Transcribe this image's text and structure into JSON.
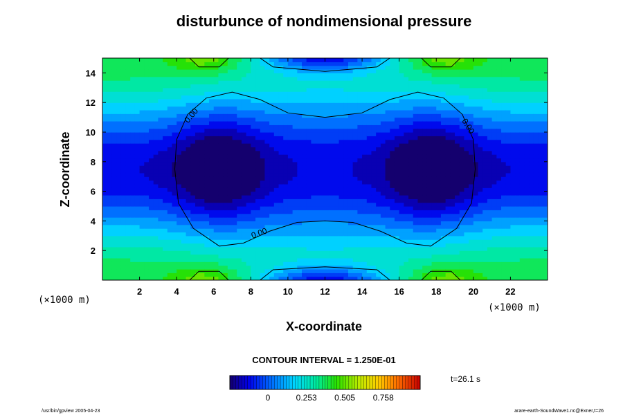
{
  "chart_data": {
    "type": "heatmap",
    "title": "disturbunce of nondimensional pressure",
    "xlabel": "X-coordinate",
    "ylabel": "Z-coordinate",
    "x_unit": "(×1000 m)",
    "y_unit": "(×1000 m)",
    "xlim": [
      0,
      24
    ],
    "ylim": [
      0,
      15
    ],
    "x_ticks": [
      2,
      4,
      6,
      8,
      10,
      12,
      14,
      16,
      18,
      20,
      22
    ],
    "y_ticks": [
      2,
      4,
      6,
      8,
      10,
      12,
      14
    ],
    "contour_interval_text": "CONTOUR INTERVAL = 1.250E-01",
    "contour_labels": [
      {
        "text": "0.00",
        "x": 4.9,
        "z": 11.0
      },
      {
        "text": "0.00",
        "x": 19.6,
        "z": 10.3
      },
      {
        "text": "0.00",
        "x": 8.5,
        "z": 3.0
      }
    ],
    "colorbar": {
      "ticks": [
        "0",
        "0.253",
        "0.505",
        "0.758"
      ],
      "tick_values": [
        0,
        0.253,
        0.505,
        0.758
      ],
      "range": [
        -0.25,
        1.0
      ]
    },
    "time_label": "t=26.1 s",
    "footer_left": "/usr/bin/gpview 2005-04-23",
    "footer_right": "arare-earth-SoundWave1.nc@Exner,t=26",
    "colors": {
      "background_field": "#0a6bf0",
      "low_field": "#0b3ae0",
      "high_field": "#18d8f8"
    }
  }
}
